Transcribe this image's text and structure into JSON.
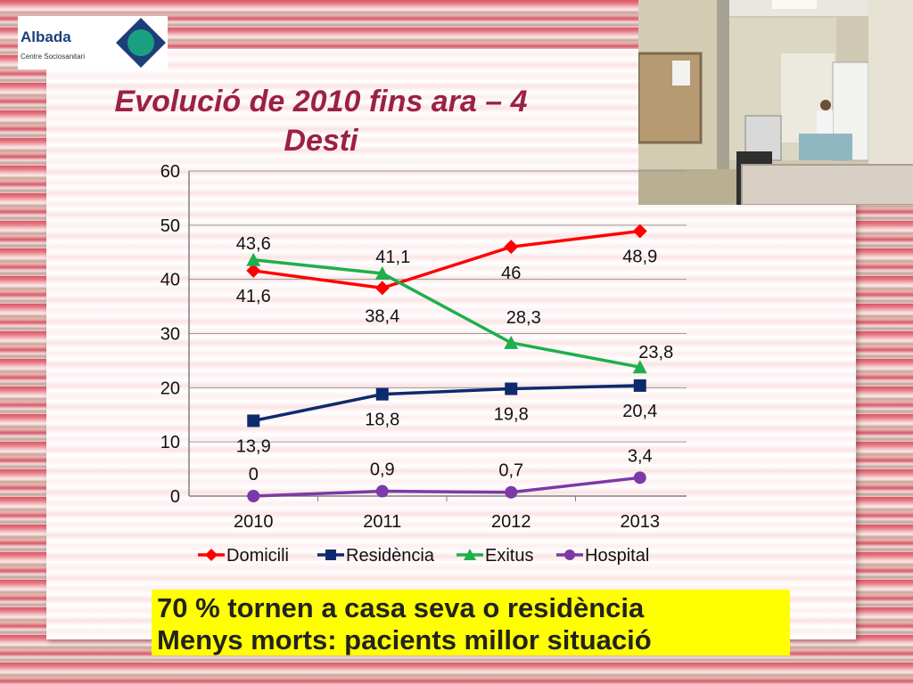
{
  "logo": {
    "name": "Albada",
    "subtitle": "Centre Sociosanitari"
  },
  "title": {
    "line1": "Evolució de 2010 fins ara – 4",
    "line2": "Desti"
  },
  "highlight": {
    "line1": "70 % tornen a casa seva o residència",
    "line2": "Menys morts: pacients millor situació"
  },
  "colors": {
    "title": "#9b2145",
    "highlight_bg": "#ffff00"
  },
  "chart_data": {
    "type": "line",
    "title": "",
    "xlabel": "",
    "ylabel": "",
    "categories": [
      "2010",
      "2011",
      "2012",
      "2013"
    ],
    "ylim": [
      0,
      60
    ],
    "yticks": [
      "0",
      "10",
      "20",
      "30",
      "40",
      "50",
      "60"
    ],
    "grid": true,
    "legend": "bottom",
    "series": [
      {
        "name": "Domicili",
        "color": "#ff0000",
        "marker": "diamond",
        "values": [
          41.6,
          38.4,
          46,
          48.9
        ],
        "labels": [
          "41,6",
          "38,4",
          "46",
          "48,9"
        ]
      },
      {
        "name": "Residència",
        "color": "#0d2a6e",
        "marker": "square",
        "values": [
          13.9,
          18.8,
          19.8,
          20.4
        ],
        "labels": [
          "13,9",
          "18,8",
          "19,8",
          "20,4"
        ]
      },
      {
        "name": "Exitus",
        "color": "#1db04b",
        "marker": "triangle",
        "values": [
          43.6,
          41.1,
          28.3,
          23.8
        ],
        "labels": [
          "43,6",
          "41,1",
          "28,3",
          "23,8"
        ]
      },
      {
        "name": "Hospital",
        "color": "#7b3aa6",
        "marker": "circle",
        "values": [
          0,
          0.9,
          0.7,
          3.4
        ],
        "labels": [
          "0",
          "0,9",
          "0,7",
          "3,4"
        ]
      }
    ]
  }
}
